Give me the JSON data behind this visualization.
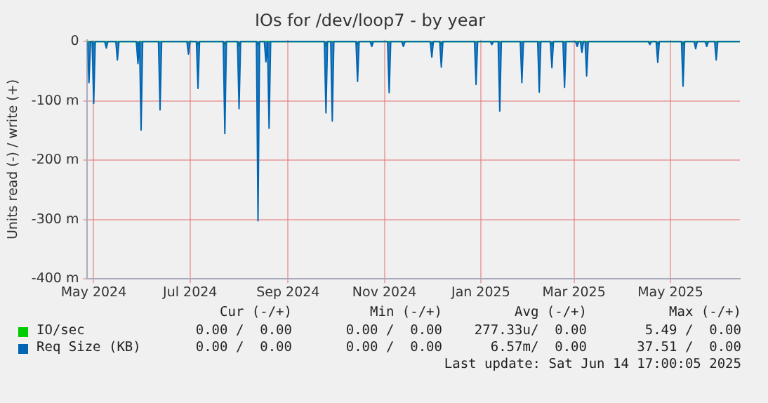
{
  "chart_data": {
    "type": "area",
    "title": "IOs for /dev/loop7 - by year",
    "ylabel": "Units read (-) / write (+)",
    "x": [
      "2024-04-27",
      "2024-04-28",
      "2024-04-29",
      "2024-04-30",
      "2024-05-01",
      "2024-05-02",
      "2024-05-08",
      "2024-05-09",
      "2024-05-10",
      "2024-05-15",
      "2024-05-16",
      "2024-05-17",
      "2024-05-28",
      "2024-05-29",
      "2024-05-30",
      "2024-05-31",
      "2024-06-01",
      "2024-06-11",
      "2024-06-12",
      "2024-06-13",
      "2024-06-29",
      "2024-06-30",
      "2024-07-01",
      "2024-07-05",
      "2024-07-06",
      "2024-07-07",
      "2024-07-22",
      "2024-07-23",
      "2024-07-24",
      "2024-07-31",
      "2024-08-01",
      "2024-08-02",
      "2024-08-12",
      "2024-08-13",
      "2024-08-14",
      "2024-08-17",
      "2024-08-18",
      "2024-08-19",
      "2024-08-20",
      "2024-08-21",
      "2024-09-24",
      "2024-09-25",
      "2024-09-26",
      "2024-09-28",
      "2024-09-29",
      "2024-09-30",
      "2024-10-14",
      "2024-10-15",
      "2024-10-16",
      "2024-10-23",
      "2024-10-24",
      "2024-10-25",
      "2024-11-03",
      "2024-11-04",
      "2024-11-05",
      "2024-11-12",
      "2024-11-13",
      "2024-11-14",
      "2024-11-30",
      "2024-12-01",
      "2024-12-02",
      "2024-12-06",
      "2024-12-07",
      "2024-12-08",
      "2024-12-28",
      "2024-12-29",
      "2024-12-30",
      "2025-01-07",
      "2025-01-08",
      "2025-01-09",
      "2025-01-12",
      "2025-01-13",
      "2025-01-14",
      "2025-01-26",
      "2025-01-27",
      "2025-01-28",
      "2025-02-06",
      "2025-02-07",
      "2025-02-08",
      "2025-02-14",
      "2025-02-15",
      "2025-02-16",
      "2025-02-22",
      "2025-02-23",
      "2025-02-24",
      "2025-03-02",
      "2025-03-03",
      "2025-03-04",
      "2025-03-05",
      "2025-03-06",
      "2025-03-07",
      "2025-03-08",
      "2025-03-09",
      "2025-03-10",
      "2025-04-17",
      "2025-04-18",
      "2025-04-19",
      "2025-04-22",
      "2025-04-23",
      "2025-04-24",
      "2025-05-08",
      "2025-05-09",
      "2025-05-10",
      "2025-05-16",
      "2025-05-17",
      "2025-05-18",
      "2025-05-23",
      "2025-05-24",
      "2025-05-25",
      "2025-05-29",
      "2025-05-30",
      "2025-05-31",
      "2025-06-14"
    ],
    "series": [
      {
        "name": "IO/sec",
        "color": "#00cc00",
        "values": [
          0,
          0,
          0,
          0,
          -5,
          0,
          0,
          0,
          0,
          0,
          0,
          0,
          0,
          -8,
          0,
          0,
          0,
          0,
          0,
          0,
          0,
          0,
          0,
          0,
          -5,
          0,
          0,
          -5,
          0,
          0,
          -8,
          0,
          0,
          -5,
          0,
          0,
          0,
          0,
          0,
          0,
          0,
          -8,
          0,
          0,
          0,
          0,
          0,
          -5,
          0,
          0,
          0,
          0,
          0,
          0,
          0,
          0,
          0,
          0,
          0,
          -5,
          0,
          0,
          -5,
          0,
          0,
          0,
          0,
          0,
          0,
          0,
          0,
          0,
          0,
          0,
          0,
          0,
          0,
          0,
          0,
          0,
          -5,
          0,
          0,
          0,
          0,
          0,
          0,
          0,
          0,
          0,
          0,
          0,
          0,
          0,
          0,
          0,
          0,
          0,
          -5,
          0,
          0,
          -5,
          0,
          0,
          0,
          0,
          0,
          0,
          0,
          0,
          0,
          0,
          0
        ]
      },
      {
        "name": "Req Size (KB)",
        "color": "#0066b3",
        "values": [
          0,
          -69,
          0,
          0,
          -104,
          0,
          0,
          -11,
          0,
          0,
          -31,
          0,
          0,
          -37,
          0,
          -149,
          0,
          0,
          -115,
          0,
          0,
          -21,
          0,
          0,
          -79,
          0,
          0,
          -155,
          0,
          0,
          -113,
          0,
          0,
          -302,
          0,
          0,
          -34,
          0,
          -146,
          0,
          0,
          -120,
          0,
          0,
          -134,
          0,
          0,
          -67,
          0,
          0,
          -8,
          0,
          0,
          -86,
          0,
          0,
          -8,
          0,
          0,
          -26,
          0,
          0,
          -43,
          0,
          0,
          -72,
          0,
          0,
          -5,
          0,
          0,
          -117,
          0,
          0,
          -69,
          0,
          0,
          -85,
          0,
          0,
          -44,
          0,
          0,
          -77,
          0,
          0,
          -8,
          0,
          0,
          -18,
          0,
          0,
          -58,
          0,
          0,
          -5,
          0,
          0,
          -35,
          0,
          0,
          -75,
          0,
          0,
          -12,
          0,
          0,
          -8,
          0,
          0,
          -31,
          0,
          0
        ]
      }
    ],
    "xlim": [
      "2024-04-27",
      "2025-06-14"
    ],
    "xticks": [
      {
        "value": "2024-05-01",
        "label": "May 2024"
      },
      {
        "value": "2024-07-01",
        "label": "Jul 2024"
      },
      {
        "value": "2024-09-01",
        "label": "Sep 2024"
      },
      {
        "value": "2024-11-01",
        "label": "Nov 2024"
      },
      {
        "value": "2025-01-01",
        "label": "Jan 2025"
      },
      {
        "value": "2025-03-01",
        "label": "Mar 2025"
      },
      {
        "value": "2025-05-01",
        "label": "May 2025"
      }
    ],
    "ylim": [
      -400,
      3
    ],
    "yticks": [
      {
        "value": -400,
        "label": "-400 m"
      },
      {
        "value": -300,
        "label": "-300 m"
      },
      {
        "value": -200,
        "label": "-200 m"
      },
      {
        "value": -100,
        "label": "-100 m"
      },
      0
    ],
    "grid": true,
    "legend": "bottom",
    "annotations": [
      "Cur (-/+)",
      "Min (-/+)",
      "Avg (-/+)",
      "Max (-/+)",
      "0.00 /  0.00",
      "0.00 /  0.00",
      "277.33u/  0.00",
      "5.49 /  0.00",
      "0.00 /  0.00",
      "0.00 /  0.00",
      "6.57m/  0.00",
      "37.51 /  0.00",
      "Last update: Sat Jun 14 17:00:05 2025"
    ]
  }
}
